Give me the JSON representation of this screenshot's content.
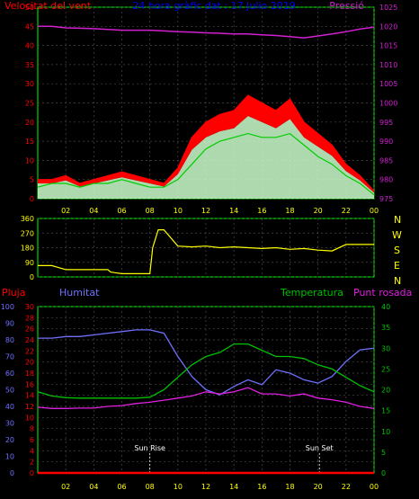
{
  "colors": {
    "background": "#000000",
    "axis_frame": "#00ff00",
    "grid": "#4a4a4a",
    "wind_speed": "#ff0000",
    "wind_avg": "#00cc00",
    "wind_gust_fill": "#ccffcc",
    "pressure": "#d020d0",
    "wind_dir": "#ffff00",
    "humidity": "#7070ff",
    "temperature": "#00c000",
    "dew_point": "#e020e0",
    "rain": "#ff0000",
    "title": "#0000ff",
    "tick_text": "#ffff00"
  },
  "chart_data": [
    {
      "type": "line",
      "title": "24 hora gràfic dat : 17 Julio 2019",
      "left_label": "Velocitat del vent",
      "right_label": "Pressió",
      "x_ticks": [
        "02",
        "04",
        "06",
        "08",
        "10",
        "12",
        "14",
        "16",
        "18",
        "20",
        "22",
        "00"
      ],
      "ylim_left": [
        0,
        50
      ],
      "y_ticks_left": [
        "0",
        "5",
        "10",
        "15",
        "20",
        "25",
        "30",
        "35",
        "40",
        "45",
        "50"
      ],
      "ylim_right": [
        975,
        1025
      ],
      "y_ticks_right": [
        "975",
        "980",
        "985",
        "990",
        "995",
        "1000",
        "1005",
        "1010",
        "1015",
        "1020",
        "1025"
      ],
      "x": [
        0,
        1,
        2,
        3,
        4,
        5,
        6,
        7,
        8,
        9,
        10,
        11,
        12,
        13,
        14,
        15,
        16,
        17,
        18,
        19,
        20,
        21,
        22,
        23,
        24
      ],
      "series": [
        {
          "name": "Velocitat del vent",
          "axis": "left",
          "color_key": "wind_speed",
          "values": [
            5,
            5,
            6,
            4,
            5,
            6,
            7,
            6,
            5,
            4,
            8,
            16,
            20,
            22,
            23,
            27,
            25,
            23,
            26,
            20,
            17,
            14,
            9,
            6,
            2
          ]
        },
        {
          "name": "",
          "axis": "left",
          "color_key": "wind_avg",
          "values": [
            3,
            4,
            4,
            3,
            4,
            4,
            5,
            4,
            3,
            3,
            5,
            9,
            13,
            15,
            16,
            17,
            16,
            16,
            17,
            14,
            11,
            9,
            6,
            4,
            1
          ]
        },
        {
          "name": "Pressió",
          "axis": "right",
          "color_key": "pressure",
          "values": [
            1020,
            1020,
            1019.6,
            1019.5,
            1019.4,
            1019.2,
            1019,
            1019,
            1019,
            1018.8,
            1018.6,
            1018.5,
            1018.3,
            1018.2,
            1018,
            1018,
            1017.8,
            1017.6,
            1017.3,
            1017,
            1017.5,
            1018,
            1018.6,
            1019.3,
            1019.8
          ]
        }
      ]
    },
    {
      "type": "line",
      "title": "",
      "y_ticks_left": [
        "0",
        "90",
        "180",
        "270",
        "360"
      ],
      "ylim_left": [
        0,
        360
      ],
      "direction_labels": [
        "N",
        "W",
        "S",
        "E",
        "N"
      ],
      "x": [
        0,
        1,
        2,
        3,
        4,
        5,
        5.2,
        6,
        7,
        8,
        8.2,
        8.6,
        9,
        10,
        11,
        12,
        13,
        14,
        15,
        16,
        17,
        18,
        19,
        20,
        21,
        22,
        23,
        24
      ],
      "series": [
        {
          "name": "",
          "color_key": "wind_dir",
          "values": [
            70,
            70,
            45,
            45,
            45,
            45,
            30,
            20,
            20,
            20,
            180,
            290,
            290,
            190,
            185,
            190,
            180,
            185,
            180,
            175,
            180,
            170,
            175,
            165,
            160,
            200,
            200,
            200
          ]
        }
      ]
    },
    {
      "type": "line",
      "title": "",
      "left_labels": [
        "Pluja",
        "Humitat"
      ],
      "right_labels": [
        "Temperatura",
        "Punt rosada"
      ],
      "y_ticks_rain": [
        "0",
        "2",
        "4",
        "6",
        "8",
        "10",
        "12",
        "14",
        "16",
        "18",
        "20",
        "22",
        "24",
        "26",
        "28",
        "30"
      ],
      "ylim_rain": [
        0,
        30
      ],
      "y_ticks_humidity": [
        "0",
        "10",
        "20",
        "30",
        "40",
        "50",
        "60",
        "70",
        "80",
        "90",
        "100"
      ],
      "ylim_humidity": [
        0,
        100
      ],
      "y_ticks_temp": [
        "0",
        "5",
        "10",
        "15",
        "20",
        "25",
        "30",
        "35",
        "40"
      ],
      "ylim_temp": [
        0,
        40
      ],
      "annotations": [
        {
          "label": "Sun Rise",
          "x": 8
        },
        {
          "label": "Sun Set",
          "x": 20.1
        }
      ],
      "x": [
        0,
        1,
        2,
        3,
        4,
        5,
        6,
        7,
        8,
        9,
        10,
        11,
        12,
        13,
        14,
        15,
        16,
        17,
        18,
        19,
        20,
        21,
        22,
        23,
        24
      ],
      "series": [
        {
          "name": "Humitat",
          "axis": "humidity",
          "color_key": "humidity",
          "values": [
            81,
            81,
            82,
            82,
            83,
            84,
            85,
            86,
            86,
            84,
            70,
            58,
            50,
            47,
            52,
            56,
            53,
            62,
            60,
            56,
            54,
            58,
            67,
            74,
            75
          ]
        },
        {
          "name": "Temperatura",
          "axis": "temp",
          "color_key": "temperature",
          "values": [
            19.5,
            18.5,
            18.1,
            18,
            18,
            18,
            18,
            18,
            18.2,
            20,
            23,
            26,
            28,
            29,
            31,
            31,
            29.5,
            28,
            28,
            27.5,
            26,
            25,
            23,
            21,
            19.5
          ]
        },
        {
          "name": "Punt rosada",
          "axis": "temp",
          "color_key": "dew_point",
          "values": [
            15.8,
            15.5,
            15.5,
            15.6,
            15.6,
            16,
            16.2,
            16.7,
            17,
            17.5,
            18,
            18.5,
            19.5,
            19,
            19.5,
            20.5,
            19,
            19,
            18.5,
            19,
            18,
            17.6,
            17,
            16,
            15.5
          ]
        },
        {
          "name": "Pluja",
          "axis": "rain",
          "color_key": "rain",
          "values": [
            0,
            0,
            0,
            0,
            0,
            0,
            0,
            0,
            0,
            0,
            0,
            0,
            0,
            0,
            0,
            0,
            0,
            0,
            0,
            0,
            0,
            0,
            0,
            0,
            0
          ]
        }
      ]
    }
  ]
}
